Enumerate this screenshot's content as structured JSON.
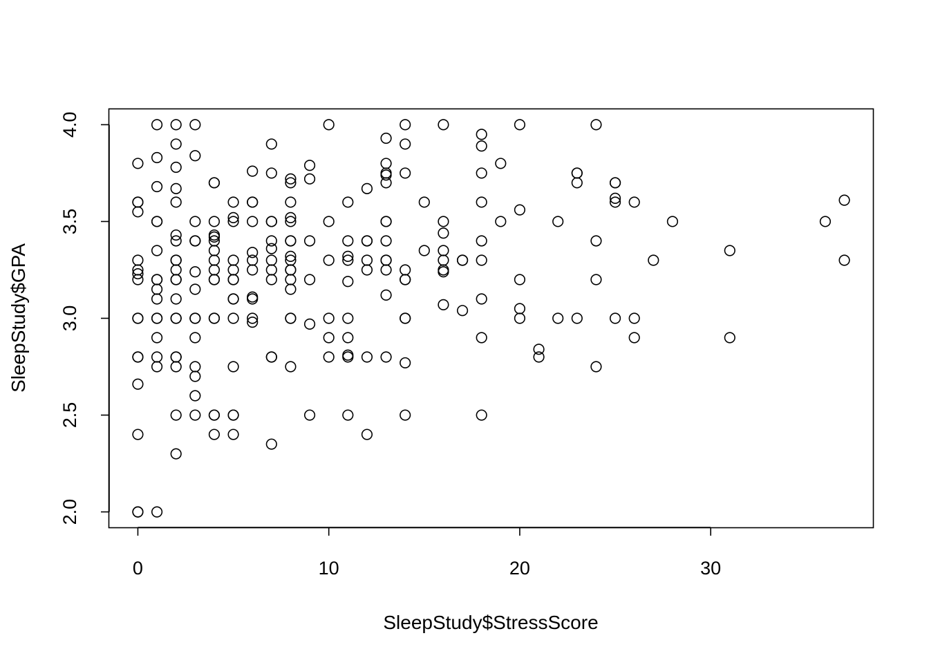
{
  "chart_data": {
    "type": "scatter",
    "title": "",
    "xlabel": "SleepStudy$StressScore",
    "ylabel": "SleepStudy$GPA",
    "xlim": [
      -1.5,
      38.5
    ],
    "ylim": [
      1.92,
      4.08
    ],
    "x_ticks": [
      0,
      10,
      20,
      30
    ],
    "y_ticks": [
      2.0,
      2.5,
      3.0,
      3.5,
      4.0
    ],
    "x_tick_labels": [
      "0",
      "10",
      "20",
      "30"
    ],
    "y_tick_labels": [
      "2.0",
      "2.5",
      "3.0",
      "3.5",
      "4.0"
    ],
    "grid": false,
    "legend": "none",
    "marker": "open-circle",
    "marker_color": "#000000",
    "points": [
      {
        "x": 0,
        "y": 3.8
      },
      {
        "x": 0,
        "y": 3.6
      },
      {
        "x": 0,
        "y": 3.6
      },
      {
        "x": 0,
        "y": 3.55
      },
      {
        "x": 0,
        "y": 3.3
      },
      {
        "x": 0,
        "y": 3.25
      },
      {
        "x": 0,
        "y": 3.23
      },
      {
        "x": 0,
        "y": 3.2
      },
      {
        "x": 0,
        "y": 3.0
      },
      {
        "x": 0,
        "y": 3.0
      },
      {
        "x": 0,
        "y": 2.8
      },
      {
        "x": 0,
        "y": 2.8
      },
      {
        "x": 0,
        "y": 2.66
      },
      {
        "x": 0,
        "y": 2.4
      },
      {
        "x": 0,
        "y": 2.0
      },
      {
        "x": 0,
        "y": 2.0
      },
      {
        "x": 1,
        "y": 4.0
      },
      {
        "x": 1,
        "y": 3.83
      },
      {
        "x": 1,
        "y": 3.68
      },
      {
        "x": 1,
        "y": 3.5
      },
      {
        "x": 1,
        "y": 3.5
      },
      {
        "x": 1,
        "y": 3.35
      },
      {
        "x": 1,
        "y": 3.2
      },
      {
        "x": 1,
        "y": 3.2
      },
      {
        "x": 1,
        "y": 3.15
      },
      {
        "x": 1,
        "y": 3.1
      },
      {
        "x": 1,
        "y": 3.0
      },
      {
        "x": 1,
        "y": 3.0
      },
      {
        "x": 1,
        "y": 2.9
      },
      {
        "x": 1,
        "y": 2.8
      },
      {
        "x": 1,
        "y": 2.75
      },
      {
        "x": 1,
        "y": 2.0
      },
      {
        "x": 2,
        "y": 4.0
      },
      {
        "x": 2,
        "y": 3.9
      },
      {
        "x": 2,
        "y": 3.78
      },
      {
        "x": 2,
        "y": 3.67
      },
      {
        "x": 2,
        "y": 3.6
      },
      {
        "x": 2,
        "y": 3.43
      },
      {
        "x": 2,
        "y": 3.4
      },
      {
        "x": 2,
        "y": 3.3
      },
      {
        "x": 2,
        "y": 3.3
      },
      {
        "x": 2,
        "y": 3.25
      },
      {
        "x": 2,
        "y": 3.2
      },
      {
        "x": 2,
        "y": 3.2
      },
      {
        "x": 2,
        "y": 3.1
      },
      {
        "x": 2,
        "y": 3.0
      },
      {
        "x": 2,
        "y": 3.0
      },
      {
        "x": 2,
        "y": 2.8
      },
      {
        "x": 2,
        "y": 2.8
      },
      {
        "x": 2,
        "y": 2.75
      },
      {
        "x": 2,
        "y": 2.5
      },
      {
        "x": 2,
        "y": 2.3
      },
      {
        "x": 3,
        "y": 4.0
      },
      {
        "x": 3,
        "y": 3.84
      },
      {
        "x": 3,
        "y": 3.5
      },
      {
        "x": 3,
        "y": 3.4
      },
      {
        "x": 3,
        "y": 3.4
      },
      {
        "x": 3,
        "y": 3.24
      },
      {
        "x": 3,
        "y": 3.15
      },
      {
        "x": 3,
        "y": 3.0
      },
      {
        "x": 3,
        "y": 3.0
      },
      {
        "x": 3,
        "y": 2.9
      },
      {
        "x": 3,
        "y": 2.75
      },
      {
        "x": 3,
        "y": 2.7
      },
      {
        "x": 3,
        "y": 2.6
      },
      {
        "x": 3,
        "y": 2.5
      },
      {
        "x": 4,
        "y": 3.7
      },
      {
        "x": 4,
        "y": 3.7
      },
      {
        "x": 4,
        "y": 3.5
      },
      {
        "x": 4,
        "y": 3.43
      },
      {
        "x": 4,
        "y": 3.42
      },
      {
        "x": 4,
        "y": 3.4
      },
      {
        "x": 4,
        "y": 3.35
      },
      {
        "x": 4,
        "y": 3.3
      },
      {
        "x": 4,
        "y": 3.25
      },
      {
        "x": 4,
        "y": 3.2
      },
      {
        "x": 4,
        "y": 3.2
      },
      {
        "x": 4,
        "y": 3.0
      },
      {
        "x": 4,
        "y": 3.0
      },
      {
        "x": 4,
        "y": 2.5
      },
      {
        "x": 4,
        "y": 2.5
      },
      {
        "x": 4,
        "y": 2.4
      },
      {
        "x": 5,
        "y": 3.6
      },
      {
        "x": 5,
        "y": 3.52
      },
      {
        "x": 5,
        "y": 3.5
      },
      {
        "x": 5,
        "y": 3.3
      },
      {
        "x": 5,
        "y": 3.25
      },
      {
        "x": 5,
        "y": 3.2
      },
      {
        "x": 5,
        "y": 3.2
      },
      {
        "x": 5,
        "y": 3.1
      },
      {
        "x": 5,
        "y": 3.1
      },
      {
        "x": 5,
        "y": 3.0
      },
      {
        "x": 5,
        "y": 2.75
      },
      {
        "x": 5,
        "y": 2.5
      },
      {
        "x": 5,
        "y": 2.5
      },
      {
        "x": 5,
        "y": 2.4
      },
      {
        "x": 6,
        "y": 3.76
      },
      {
        "x": 6,
        "y": 3.6
      },
      {
        "x": 6,
        "y": 3.6
      },
      {
        "x": 6,
        "y": 3.5
      },
      {
        "x": 6,
        "y": 3.34
      },
      {
        "x": 6,
        "y": 3.3
      },
      {
        "x": 6,
        "y": 3.25
      },
      {
        "x": 6,
        "y": 3.11
      },
      {
        "x": 6,
        "y": 3.1
      },
      {
        "x": 6,
        "y": 3.0
      },
      {
        "x": 6,
        "y": 2.98
      },
      {
        "x": 7,
        "y": 3.9
      },
      {
        "x": 7,
        "y": 3.75
      },
      {
        "x": 7,
        "y": 3.5
      },
      {
        "x": 7,
        "y": 3.5
      },
      {
        "x": 7,
        "y": 3.4
      },
      {
        "x": 7,
        "y": 3.36
      },
      {
        "x": 7,
        "y": 3.3
      },
      {
        "x": 7,
        "y": 3.25
      },
      {
        "x": 7,
        "y": 3.2
      },
      {
        "x": 7,
        "y": 2.8
      },
      {
        "x": 7,
        "y": 2.8
      },
      {
        "x": 7,
        "y": 2.35
      },
      {
        "x": 8,
        "y": 3.72
      },
      {
        "x": 8,
        "y": 3.7
      },
      {
        "x": 8,
        "y": 3.6
      },
      {
        "x": 8,
        "y": 3.52
      },
      {
        "x": 8,
        "y": 3.5
      },
      {
        "x": 8,
        "y": 3.4
      },
      {
        "x": 8,
        "y": 3.4
      },
      {
        "x": 8,
        "y": 3.32
      },
      {
        "x": 8,
        "y": 3.3
      },
      {
        "x": 8,
        "y": 3.25
      },
      {
        "x": 8,
        "y": 3.25
      },
      {
        "x": 8,
        "y": 3.2
      },
      {
        "x": 8,
        "y": 3.15
      },
      {
        "x": 8,
        "y": 3.0
      },
      {
        "x": 8,
        "y": 3.0
      },
      {
        "x": 8,
        "y": 2.75
      },
      {
        "x": 9,
        "y": 3.79
      },
      {
        "x": 9,
        "y": 3.72
      },
      {
        "x": 9,
        "y": 3.4
      },
      {
        "x": 9,
        "y": 3.2
      },
      {
        "x": 9,
        "y": 2.97
      },
      {
        "x": 9,
        "y": 2.5
      },
      {
        "x": 10,
        "y": 4.0
      },
      {
        "x": 10,
        "y": 3.5
      },
      {
        "x": 10,
        "y": 3.3
      },
      {
        "x": 10,
        "y": 3.0
      },
      {
        "x": 10,
        "y": 2.9
      },
      {
        "x": 10,
        "y": 2.8
      },
      {
        "x": 11,
        "y": 3.6
      },
      {
        "x": 11,
        "y": 3.4
      },
      {
        "x": 11,
        "y": 3.32
      },
      {
        "x": 11,
        "y": 3.3
      },
      {
        "x": 11,
        "y": 3.19
      },
      {
        "x": 11,
        "y": 3.0
      },
      {
        "x": 11,
        "y": 2.9
      },
      {
        "x": 11,
        "y": 2.81
      },
      {
        "x": 11,
        "y": 2.8
      },
      {
        "x": 11,
        "y": 2.5
      },
      {
        "x": 12,
        "y": 3.67
      },
      {
        "x": 12,
        "y": 3.4
      },
      {
        "x": 12,
        "y": 3.4
      },
      {
        "x": 12,
        "y": 3.3
      },
      {
        "x": 12,
        "y": 3.25
      },
      {
        "x": 12,
        "y": 2.8
      },
      {
        "x": 12,
        "y": 2.4
      },
      {
        "x": 13,
        "y": 3.93
      },
      {
        "x": 13,
        "y": 3.8
      },
      {
        "x": 13,
        "y": 3.75
      },
      {
        "x": 13,
        "y": 3.74
      },
      {
        "x": 13,
        "y": 3.7
      },
      {
        "x": 13,
        "y": 3.5
      },
      {
        "x": 13,
        "y": 3.5
      },
      {
        "x": 13,
        "y": 3.4
      },
      {
        "x": 13,
        "y": 3.3
      },
      {
        "x": 13,
        "y": 3.3
      },
      {
        "x": 13,
        "y": 3.25
      },
      {
        "x": 13,
        "y": 3.12
      },
      {
        "x": 13,
        "y": 2.8
      },
      {
        "x": 14,
        "y": 4.0
      },
      {
        "x": 14,
        "y": 3.9
      },
      {
        "x": 14,
        "y": 3.75
      },
      {
        "x": 14,
        "y": 3.25
      },
      {
        "x": 14,
        "y": 3.2
      },
      {
        "x": 14,
        "y": 3.2
      },
      {
        "x": 14,
        "y": 3.0
      },
      {
        "x": 14,
        "y": 3.0
      },
      {
        "x": 14,
        "y": 2.77
      },
      {
        "x": 14,
        "y": 2.5
      },
      {
        "x": 15,
        "y": 3.6
      },
      {
        "x": 15,
        "y": 3.35
      },
      {
        "x": 16,
        "y": 4.0
      },
      {
        "x": 16,
        "y": 3.5
      },
      {
        "x": 16,
        "y": 3.44
      },
      {
        "x": 16,
        "y": 3.35
      },
      {
        "x": 16,
        "y": 3.3
      },
      {
        "x": 16,
        "y": 3.25
      },
      {
        "x": 16,
        "y": 3.24
      },
      {
        "x": 16,
        "y": 3.07
      },
      {
        "x": 17,
        "y": 3.3
      },
      {
        "x": 17,
        "y": 3.3
      },
      {
        "x": 17,
        "y": 3.04
      },
      {
        "x": 18,
        "y": 3.95
      },
      {
        "x": 18,
        "y": 3.89
      },
      {
        "x": 18,
        "y": 3.75
      },
      {
        "x": 18,
        "y": 3.6
      },
      {
        "x": 18,
        "y": 3.4
      },
      {
        "x": 18,
        "y": 3.3
      },
      {
        "x": 18,
        "y": 3.1
      },
      {
        "x": 18,
        "y": 2.9
      },
      {
        "x": 18,
        "y": 2.5
      },
      {
        "x": 19,
        "y": 3.8
      },
      {
        "x": 19,
        "y": 3.5
      },
      {
        "x": 20,
        "y": 4.0
      },
      {
        "x": 20,
        "y": 3.56
      },
      {
        "x": 20,
        "y": 3.2
      },
      {
        "x": 20,
        "y": 3.05
      },
      {
        "x": 20,
        "y": 3.0
      },
      {
        "x": 21,
        "y": 2.84
      },
      {
        "x": 21,
        "y": 2.8
      },
      {
        "x": 22,
        "y": 3.5
      },
      {
        "x": 22,
        "y": 3.0
      },
      {
        "x": 23,
        "y": 3.75
      },
      {
        "x": 23,
        "y": 3.75
      },
      {
        "x": 23,
        "y": 3.7
      },
      {
        "x": 23,
        "y": 3.0
      },
      {
        "x": 24,
        "y": 4.0
      },
      {
        "x": 24,
        "y": 3.4
      },
      {
        "x": 24,
        "y": 3.2
      },
      {
        "x": 24,
        "y": 2.75
      },
      {
        "x": 25,
        "y": 3.7
      },
      {
        "x": 25,
        "y": 3.7
      },
      {
        "x": 25,
        "y": 3.62
      },
      {
        "x": 25,
        "y": 3.6
      },
      {
        "x": 25,
        "y": 3.0
      },
      {
        "x": 26,
        "y": 3.6
      },
      {
        "x": 26,
        "y": 3.0
      },
      {
        "x": 26,
        "y": 2.9
      },
      {
        "x": 27,
        "y": 3.3
      },
      {
        "x": 28,
        "y": 3.5
      },
      {
        "x": 31,
        "y": 3.35
      },
      {
        "x": 31,
        "y": 2.9
      },
      {
        "x": 36,
        "y": 3.5
      },
      {
        "x": 37,
        "y": 3.61
      },
      {
        "x": 37,
        "y": 3.3
      }
    ]
  }
}
